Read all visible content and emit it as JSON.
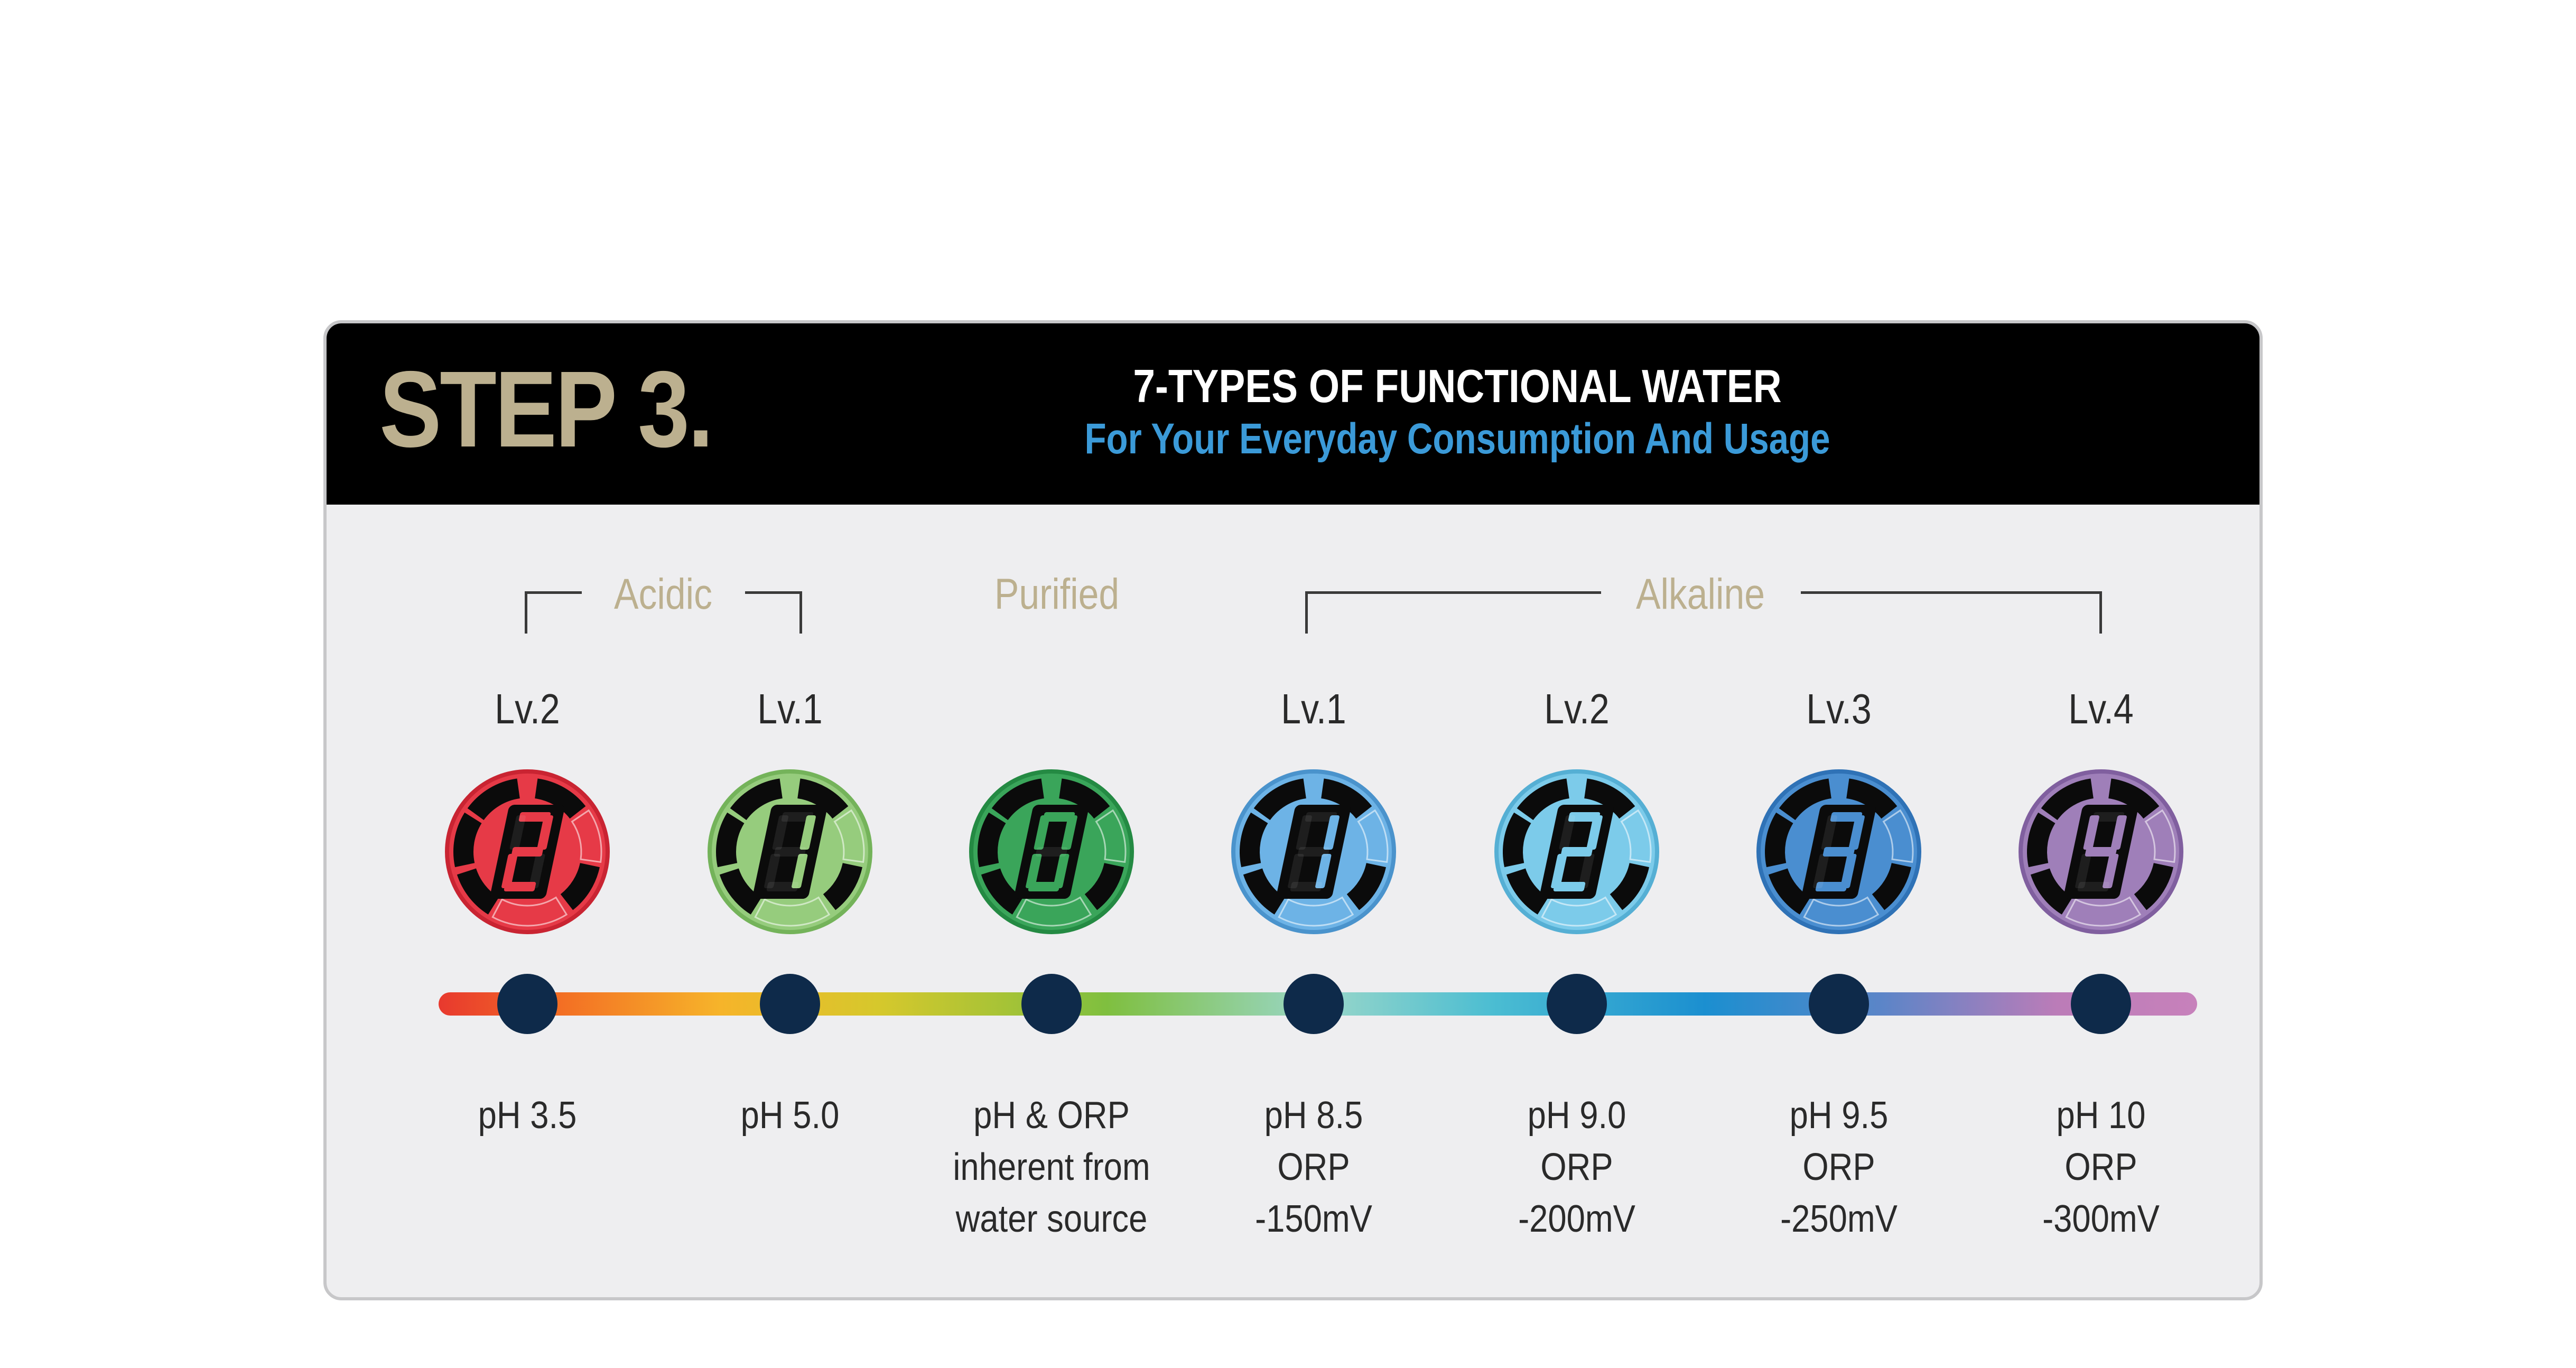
{
  "header": {
    "step": "STEP 3.",
    "title": "7-TYPES OF FUNCTIONAL WATER",
    "subtitle": "For Your Everyday Consumption And Usage"
  },
  "groups": {
    "acidic": "Acidic",
    "purified": "Purified",
    "alkaline": "Alkaline"
  },
  "colors": {
    "header_bg": "#000000",
    "step_text": "#bcb08f",
    "subtitle": "#3b9ad8",
    "group_label": "#bcb08f",
    "marker": "#0e2a4a",
    "card_bg": "#eeeef0"
  },
  "levels": [
    {
      "level": "Lv.2",
      "digit": "2",
      "color": "#e63a47",
      "edge": "#c92432",
      "line1": "pH 3.5",
      "line2": "",
      "line3": ""
    },
    {
      "level": "Lv.1",
      "digit": "1",
      "color": "#96cc7d",
      "edge": "#74b35a",
      "line1": "pH 5.0",
      "line2": "",
      "line3": ""
    },
    {
      "level": "",
      "digit": "0",
      "color": "#3aa55a",
      "edge": "#248a43",
      "line1": "pH & ORP",
      "line2": "inherent from",
      "line3": "water source"
    },
    {
      "level": "Lv.1",
      "digit": "1",
      "color": "#6db3e6",
      "edge": "#4a93cc",
      "line1": "pH 8.5",
      "line2": "ORP",
      "line3": "-150mV"
    },
    {
      "level": "Lv.2",
      "digit": "2",
      "color": "#7ccbea",
      "edge": "#55afd4",
      "line1": "pH 9.0",
      "line2": "ORP",
      "line3": "-200mV"
    },
    {
      "level": "Lv.3",
      "digit": "3",
      "color": "#4a8ed0",
      "edge": "#2f72b6",
      "line1": "pH 9.5",
      "line2": "ORP",
      "line3": "-250mV"
    },
    {
      "level": "Lv.4",
      "digit": "4",
      "color": "#9f7fb9",
      "edge": "#805f9f",
      "line1": "pH 10",
      "line2": "ORP",
      "line3": "-300mV"
    }
  ]
}
